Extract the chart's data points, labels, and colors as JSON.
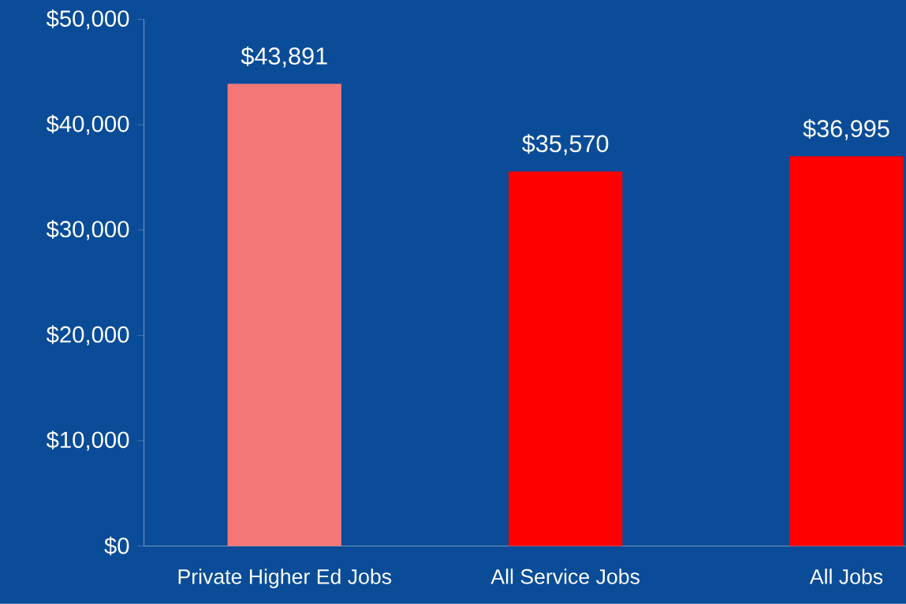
{
  "chart_data": {
    "type": "bar",
    "categories": [
      "Private Higher Ed Jobs",
      "All Service Jobs",
      "All Jobs"
    ],
    "values": [
      43891,
      35570,
      36995
    ],
    "colors": [
      "#f47878",
      "#ff0000",
      "#ff0000"
    ],
    "value_labels": [
      "$43,891",
      "$35,570",
      "$36,995"
    ],
    "ylim": [
      0,
      50000
    ],
    "yticks": [
      {
        "value": 0,
        "label": "$0"
      },
      {
        "value": 10000,
        "label": "$10,000"
      },
      {
        "value": 20000,
        "label": "$20,000"
      },
      {
        "value": 30000,
        "label": "$30,000"
      },
      {
        "value": 40000,
        "label": "$40,000"
      },
      {
        "value": 50000,
        "label": "$50,000"
      }
    ],
    "grid": false
  }
}
